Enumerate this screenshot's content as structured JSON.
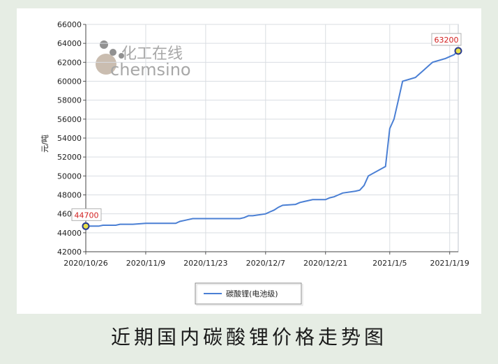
{
  "caption": "近期国内碳酸锂价格走势图",
  "watermark": {
    "cn": "化工在线",
    "en": "chemsino"
  },
  "chart_data": {
    "type": "line",
    "title": "",
    "xlabel": "",
    "ylabel": "元/吨",
    "ylim": [
      42000,
      66000
    ],
    "yticks": [
      42000,
      44000,
      46000,
      48000,
      50000,
      52000,
      54000,
      56000,
      58000,
      60000,
      62000,
      64000,
      66000
    ],
    "xrange": [
      "2020-10-26",
      "2021-01-21"
    ],
    "xtick_labels": [
      "2020/10/26",
      "2020/11/9",
      "2020/11/23",
      "2020/12/7",
      "2020/12/21",
      "2021/1/5",
      "2021/1/19"
    ],
    "xtick_dates": [
      "2020-10-26",
      "2020-11-09",
      "2020-11-23",
      "2020-12-07",
      "2020-12-21",
      "2021-01-05",
      "2021-01-19"
    ],
    "grid": true,
    "legend": "bottom-center",
    "line_color": "#4a7fd4",
    "series": [
      {
        "name": "碳酸锂(电池级)",
        "x": [
          "2020-10-26",
          "2020-10-27",
          "2020-10-28",
          "2020-10-29",
          "2020-10-30",
          "2020-11-02",
          "2020-11-03",
          "2020-11-04",
          "2020-11-05",
          "2020-11-06",
          "2020-11-09",
          "2020-11-10",
          "2020-11-11",
          "2020-11-12",
          "2020-11-13",
          "2020-11-16",
          "2020-11-17",
          "2020-11-18",
          "2020-11-19",
          "2020-11-20",
          "2020-11-23",
          "2020-11-24",
          "2020-11-25",
          "2020-11-26",
          "2020-11-27",
          "2020-11-30",
          "2020-12-01",
          "2020-12-02",
          "2020-12-03",
          "2020-12-04",
          "2020-12-07",
          "2020-12-08",
          "2020-12-09",
          "2020-12-10",
          "2020-12-11",
          "2020-12-14",
          "2020-12-15",
          "2020-12-16",
          "2020-12-17",
          "2020-12-18",
          "2020-12-21",
          "2020-12-22",
          "2020-12-23",
          "2020-12-24",
          "2020-12-25",
          "2020-12-28",
          "2020-12-29",
          "2020-12-30",
          "2020-12-31",
          "2021-01-04",
          "2021-01-05",
          "2021-01-06",
          "2021-01-07",
          "2021-01-08",
          "2021-01-11",
          "2021-01-12",
          "2021-01-13",
          "2021-01-14",
          "2021-01-15",
          "2021-01-18",
          "2021-01-19",
          "2021-01-20",
          "2021-01-21"
        ],
        "values": [
          44700,
          44700,
          44700,
          44700,
          44800,
          44800,
          44900,
          44900,
          44900,
          44900,
          45000,
          45000,
          45000,
          45000,
          45000,
          45000,
          45200,
          45300,
          45400,
          45500,
          45500,
          45500,
          45500,
          45500,
          45500,
          45500,
          45500,
          45600,
          45800,
          45800,
          46000,
          46200,
          46400,
          46700,
          46900,
          47000,
          47200,
          47300,
          47400,
          47500,
          47500,
          47700,
          47800,
          48000,
          48200,
          48400,
          48500,
          49000,
          50000,
          51000,
          55000,
          56000,
          58000,
          60000,
          60400,
          60800,
          61200,
          61600,
          62000,
          62400,
          62600,
          62800,
          63200
        ],
        "callouts": [
          {
            "label": "44700",
            "x": "2020-10-26",
            "value": 44700
          },
          {
            "label": "63200",
            "x": "2021-01-21",
            "value": 63200
          }
        ]
      }
    ]
  }
}
